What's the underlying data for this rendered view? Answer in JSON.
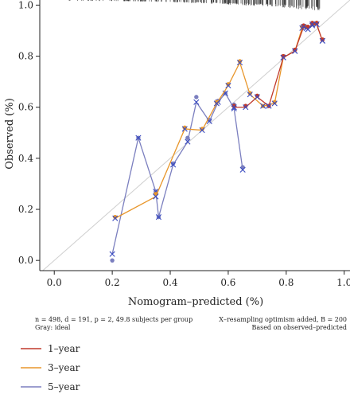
{
  "chart_data": {
    "type": "line",
    "title": "",
    "xlabel": "Nomogram–predicted (%)",
    "ylabel": "Observed (%)",
    "xlim": [
      -0.05,
      1.02
    ],
    "ylim": [
      -0.04,
      1.02
    ],
    "xticks": [
      "0.0",
      "0.2",
      "0.4",
      "0.6",
      "0.8",
      "1.0"
    ],
    "yticks": [
      "0.0",
      "0.2",
      "0.4",
      "0.6",
      "0.8",
      "1.0"
    ],
    "grid": false,
    "ideal_line": true,
    "rug_top": true,
    "notes_left": [
      "n = 498, d = 191, p = 2, 49.8 subjects per group",
      "Gray: ideal"
    ],
    "notes_right": [
      "X–resampling optimism added, B = 200",
      "Based on observed–predicted"
    ],
    "legend_position": "bottom-left",
    "series": [
      {
        "name": "1–year",
        "color": "#c0392b",
        "x": [
          0.62,
          0.66,
          0.7,
          0.74,
          0.79,
          0.83,
          0.86,
          0.875,
          0.89,
          0.905,
          0.925
        ],
        "y": [
          0.605,
          0.605,
          0.645,
          0.605,
          0.8,
          0.825,
          0.92,
          0.915,
          0.93,
          0.93,
          0.865
        ],
        "y_corrected": [
          0.6,
          0.6,
          0.64,
          0.605,
          0.795,
          0.82,
          0.915,
          0.905,
          0.925,
          0.925,
          0.86
        ]
      },
      {
        "name": "3–year",
        "color": "#e8962b",
        "x": [
          0.21,
          0.35,
          0.45,
          0.51,
          0.56,
          0.6,
          0.64,
          0.675,
          0.72,
          0.76,
          0.79,
          0.83,
          0.855,
          0.87,
          0.89,
          0.905,
          0.925
        ],
        "y": [
          0.17,
          0.26,
          0.52,
          0.515,
          0.62,
          0.69,
          0.78,
          0.655,
          0.605,
          0.62,
          0.8,
          0.825,
          0.915,
          0.915,
          0.925,
          0.93,
          0.865
        ],
        "y_corrected": [
          0.165,
          0.25,
          0.515,
          0.51,
          0.615,
          0.685,
          0.775,
          0.65,
          0.605,
          0.615,
          0.795,
          0.82,
          0.91,
          0.91,
          0.92,
          0.925,
          0.86
        ]
      },
      {
        "name": "5–year",
        "color": "#7b7fbf",
        "x": [
          0.2,
          0.29,
          0.35,
          0.36,
          0.41,
          0.46,
          0.49,
          0.535,
          0.565,
          0.59,
          0.62,
          0.65
        ],
        "y": [
          0.0,
          0.48,
          0.27,
          0.17,
          0.38,
          0.48,
          0.64,
          0.55,
          0.625,
          0.655,
          0.61,
          0.365
        ],
        "y_corrected": [
          0.025,
          0.48,
          0.27,
          0.17,
          0.375,
          0.465,
          0.62,
          0.545,
          0.62,
          0.655,
          0.595,
          0.355
        ]
      }
    ]
  }
}
